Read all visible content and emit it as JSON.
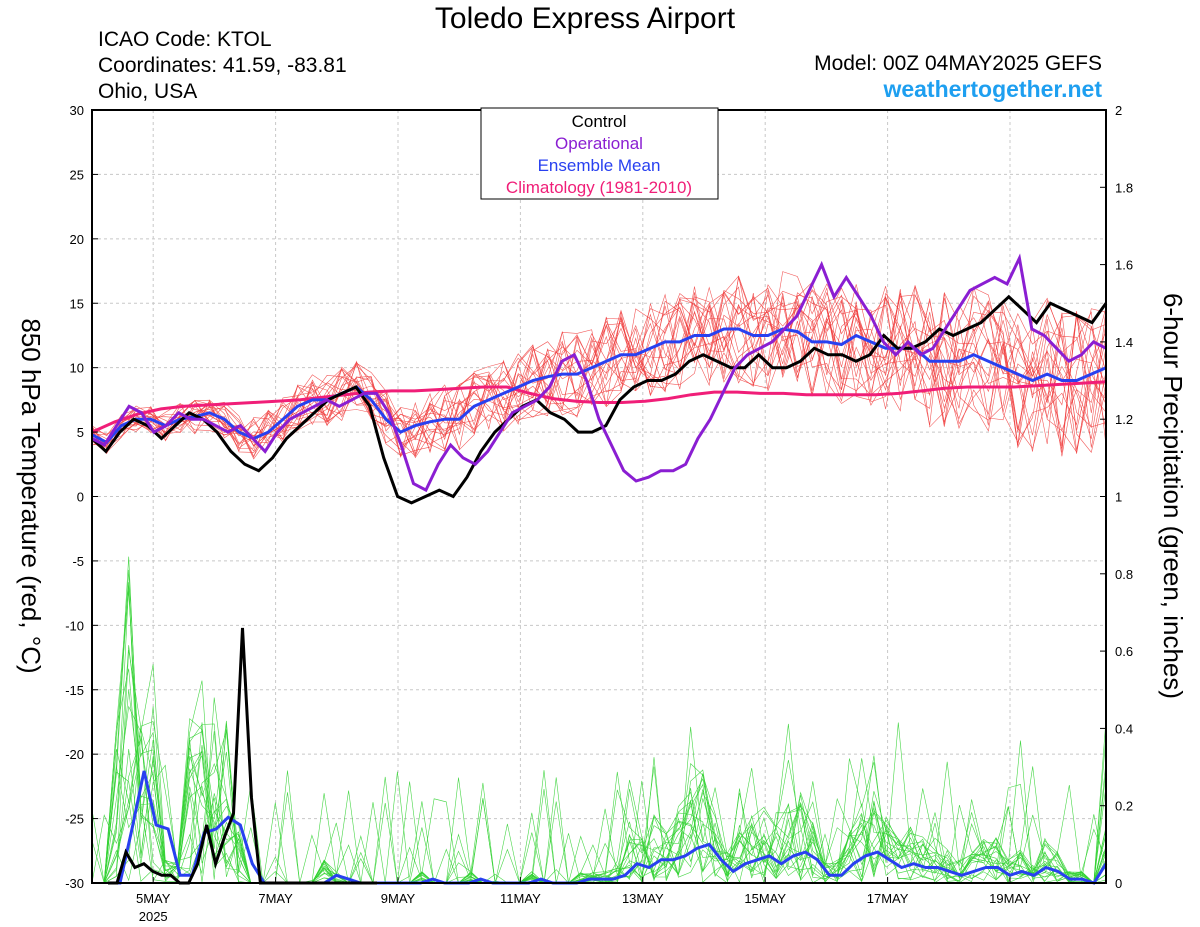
{
  "header": {
    "title": "Toledo Express Airport",
    "icao": "ICAO Code: KTOL",
    "coordinates": "Coordinates: 41.59, -83.81",
    "region": "Ohio, USA",
    "model": "Model: 00Z 04MAY2025 GEFS",
    "site": "weathertogether.net"
  },
  "colors": {
    "control": "#000000",
    "operational": "#8a1ed2",
    "ensemble_mean": "#2840f0",
    "climatology": "#f01e78",
    "members_temp": "#f03c3c",
    "members_precip": "#32d232",
    "site": "#1e9ff0"
  },
  "chart_data": {
    "type": "line",
    "left_axis": {
      "label": "850 hPa Temperature (red, °C)",
      "ylim": [
        -30,
        30
      ],
      "ticks": [
        "30",
        "25",
        "20",
        "15",
        "10",
        "5",
        "0",
        "-5",
        "-10",
        "-15",
        "-20",
        "-25",
        "-30"
      ]
    },
    "right_axis": {
      "label": "6-hour Precipitation (green, inches)",
      "ylim": [
        0,
        2
      ],
      "ticks": [
        "2",
        "1.8",
        "1.6",
        "1.4",
        "1.2",
        "1",
        "0.8",
        "0.6",
        "0.4",
        "0.2",
        "0"
      ]
    },
    "x_axis": {
      "range_days": [
        "4MAY 00Z",
        "20MAY"
      ],
      "tick_labels": [
        "5MAY",
        "7MAY",
        "9MAY",
        "11MAY",
        "13MAY",
        "15MAY",
        "17MAY",
        "19MAY"
      ],
      "tick_day_offsets": [
        1,
        3,
        5,
        7,
        9,
        11,
        13,
        15
      ],
      "year_label": "2025"
    },
    "legend": {
      "position": "top-center",
      "entries": [
        {
          "label": "Control",
          "color": "#000000"
        },
        {
          "label": "Operational",
          "color": "#8a1ed2"
        },
        {
          "label": "Ensemble Mean",
          "color": "#2840f0"
        },
        {
          "label": "Climatology (1981-2010)",
          "color": "#f01e78"
        }
      ]
    },
    "temperature": {
      "operational": [
        4.5,
        4.0,
        5.5,
        7.0,
        6.5,
        5.0,
        5.5,
        6.5,
        6.0,
        6.0,
        5.5,
        5.0,
        5.5,
        4.5,
        3.5,
        5.0,
        6.0,
        6.5,
        7.0,
        7.5,
        7.0,
        7.5,
        8.0,
        8.0,
        6.5,
        4.0,
        1.0,
        0.5,
        2.5,
        4.0,
        3.0,
        2.5,
        3.5,
        5.0,
        6.5,
        7.0,
        7.5,
        8.5,
        10.5,
        11.0,
        9.0,
        6.0,
        4.0,
        2.0,
        1.2,
        1.5,
        2.0,
        2.0,
        2.5,
        4.5,
        6.0,
        8.0,
        10.0,
        11.0,
        11.5,
        12.0,
        13.0,
        14.0,
        16.0,
        18.0,
        15.5,
        17.0,
        15.5,
        14.0,
        12.0,
        11.0,
        12.0,
        11.0,
        11.5,
        13.0,
        14.5,
        16.0,
        16.5,
        17.0,
        16.5,
        18.5,
        13.0,
        12.5,
        11.5,
        10.5,
        11.0,
        12.0,
        11.5
      ],
      "control": [
        4.5,
        3.5,
        5.0,
        6.0,
        5.5,
        4.5,
        5.5,
        6.5,
        6.0,
        5.0,
        3.5,
        2.5,
        2.0,
        3.0,
        4.5,
        5.5,
        6.5,
        7.5,
        8.0,
        8.5,
        7.0,
        3.0,
        0.0,
        -0.5,
        0.0,
        0.5,
        0.0,
        1.5,
        3.5,
        5.0,
        6.0,
        7.0,
        7.5,
        6.5,
        6.0,
        5.0,
        5.0,
        5.5,
        7.5,
        8.5,
        9.0,
        9.0,
        9.5,
        10.5,
        11.0,
        10.5,
        10.0,
        10.0,
        11.0,
        10.0,
        10.0,
        10.5,
        11.5,
        11.0,
        11.0,
        10.5,
        11.0,
        12.5,
        11.5,
        11.5,
        12.0,
        13.0,
        12.5,
        13.0,
        13.5,
        14.5,
        15.5,
        14.5,
        13.5,
        15.0,
        14.5,
        14.0,
        13.5,
        15.0
      ],
      "ensemble_mean": [
        4.8,
        4.2,
        5.5,
        6.0,
        6.0,
        5.5,
        6.0,
        6.2,
        6.5,
        6.0,
        5.0,
        4.5,
        5.0,
        6.0,
        7.0,
        7.5,
        7.5,
        8.0,
        8.5,
        7.5,
        6.0,
        5.0,
        5.5,
        5.8,
        6.0,
        6.0,
        7.0,
        7.5,
        8.0,
        8.5,
        9.0,
        9.3,
        9.5,
        9.5,
        10.0,
        10.5,
        11.0,
        11.0,
        11.5,
        12.0,
        12.0,
        12.5,
        12.5,
        13.0,
        13.0,
        12.5,
        12.5,
        13.0,
        12.8,
        12.0,
        12.0,
        11.8,
        12.5,
        12.0,
        11.5,
        11.5,
        11.5,
        10.5,
        10.5,
        10.5,
        11.0,
        10.5,
        10.0,
        9.5,
        9.0,
        9.5,
        9.0,
        9.0,
        9.5,
        10.0
      ],
      "climatology": [
        5.0,
        5.8,
        6.4,
        6.8,
        7.0,
        7.1,
        7.2,
        7.3,
        7.4,
        7.5,
        7.7,
        7.9,
        8.1,
        8.2,
        8.2,
        8.3,
        8.4,
        8.5,
        8.5,
        8.0,
        7.6,
        7.4,
        7.3,
        7.3,
        7.4,
        7.6,
        7.9,
        8.1,
        8.1,
        8.0,
        8.0,
        7.9,
        7.9,
        7.9,
        7.9,
        8.0,
        8.2,
        8.4,
        8.5,
        8.5,
        8.5,
        8.6,
        8.7,
        8.8,
        8.9
      ]
    },
    "precipitation": {
      "control": [
        0,
        0,
        0.08,
        0.04,
        0.05,
        0.03,
        0.02,
        0.02,
        0,
        0,
        0.05,
        0.15,
        0.05,
        0.12,
        0.18,
        0.66,
        0.22,
        0,
        0,
        0,
        0,
        0,
        0,
        0,
        0,
        0,
        0,
        0,
        0,
        0,
        0
      ],
      "ensemble_mean": [
        0,
        0,
        0.14,
        0.29,
        0.15,
        0.14,
        0.02,
        0.02,
        0.13,
        0.14,
        0.17,
        0.15,
        0.05,
        0,
        0,
        0,
        0,
        0,
        0,
        0.02,
        0.01,
        0,
        0,
        0,
        0,
        0,
        0,
        0.01,
        0,
        0,
        0,
        0.01,
        0,
        0,
        0,
        0,
        0.01,
        0,
        0,
        0,
        0.01,
        0.01,
        0.01,
        0.02,
        0.05,
        0.04,
        0.06,
        0.06,
        0.07,
        0.09,
        0.1,
        0.06,
        0.03,
        0.05,
        0.06,
        0.07,
        0.05,
        0.07,
        0.08,
        0.06,
        0.02,
        0.02,
        0.05,
        0.07,
        0.08,
        0.06,
        0.04,
        0.05,
        0.04,
        0.04,
        0.03,
        0.02,
        0.03,
        0.04,
        0.04,
        0.02,
        0.03,
        0.02,
        0.04,
        0.03,
        0.01,
        0.01,
        0,
        0.05
      ]
    }
  }
}
